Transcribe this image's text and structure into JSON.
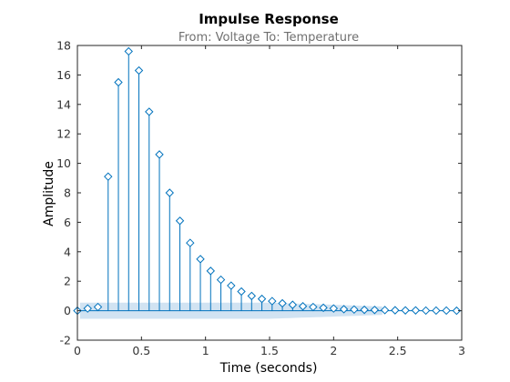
{
  "chart_data": {
    "type": "scatter",
    "title": "Impulse Response",
    "subtitle": "From: Voltage  To: Temperature",
    "xlabel": "Time (seconds)",
    "ylabel": "Amplitude",
    "xlim": [
      0,
      3
    ],
    "ylim": [
      -2,
      18
    ],
    "xticks": [
      0,
      0.5,
      1,
      1.5,
      2,
      2.5,
      3
    ],
    "xtick_labels": [
      "0",
      "0.5",
      "1",
      "1.5",
      "2",
      "2.5",
      "3"
    ],
    "yticks": [
      -2,
      0,
      2,
      4,
      6,
      8,
      10,
      12,
      14,
      16,
      18
    ],
    "ytick_labels": [
      "-2",
      "0",
      "2",
      "4",
      "6",
      "8",
      "10",
      "12",
      "14",
      "16",
      "18"
    ],
    "grid": false,
    "style": "stem",
    "marker": "diamond",
    "series": [
      {
        "x": [
          0,
          0.08,
          0.16,
          0.24,
          0.32,
          0.4,
          0.48,
          0.56,
          0.64,
          0.72,
          0.8,
          0.88,
          0.96,
          1.04,
          1.12,
          1.2,
          1.28,
          1.36,
          1.44,
          1.52,
          1.6,
          1.68,
          1.76,
          1.84,
          1.92,
          2.0,
          2.08,
          2.16,
          2.24,
          2.32,
          2.4,
          2.48,
          2.56,
          2.64,
          2.72,
          2.8,
          2.88,
          2.96
        ],
        "values": [
          0,
          0.15,
          0.25,
          9.1,
          15.5,
          17.6,
          16.3,
          13.5,
          10.6,
          8.0,
          6.1,
          4.6,
          3.5,
          2.7,
          2.1,
          1.7,
          1.3,
          1.0,
          0.8,
          0.65,
          0.5,
          0.4,
          0.3,
          0.25,
          0.2,
          0.15,
          0.1,
          0.08,
          0.06,
          0.05,
          0.04,
          0.03,
          0.02,
          0.02,
          0.01,
          0.01,
          0.01,
          0.0
        ]
      }
    ],
    "colors": {
      "series": "#0072bd",
      "confidence_band": "#c9def0",
      "axes": "#262626"
    }
  }
}
